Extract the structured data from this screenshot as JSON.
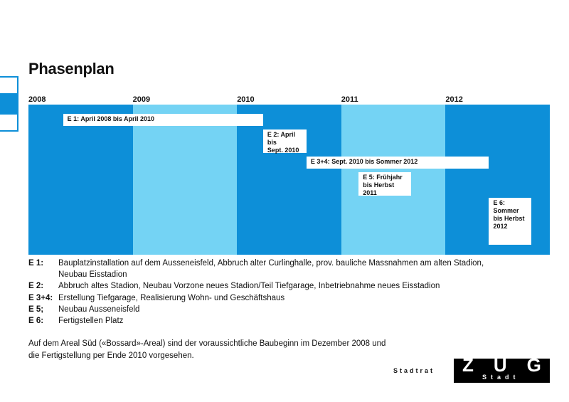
{
  "title": "Phasenplan",
  "chart_data": {
    "type": "gantt",
    "title": "Phasenplan",
    "x_range": [
      "2008-01",
      "2013-01"
    ],
    "years": [
      "2008",
      "2009",
      "2010",
      "2011",
      "2012"
    ],
    "colors": {
      "dark": "#0d8fd8",
      "light": "#74d3f4",
      "bar": "#ffffff"
    },
    "phases": [
      {
        "label": "E 1: April 2008 bis April 2010",
        "start": "2008-04",
        "end": "2010-04"
      },
      {
        "label": "E 2: April bis\nSept. 2010",
        "start": "2010-04",
        "end": "2010-09"
      },
      {
        "label": "E 3+4: Sept. 2010 bis Sommer 2012",
        "start": "2010-09",
        "end": "2012-06"
      },
      {
        "label": "E 5: Frühjahr\nbis Herbst 2011",
        "start": "2011-03",
        "end": "2011-09"
      },
      {
        "label": "E 6:\nSommer\nbis Herbst\n2012",
        "start": "2012-06",
        "end": "2012-09"
      }
    ]
  },
  "legend": [
    {
      "code": "E 1:",
      "text": "Bauplatzinstallation auf dem Ausseneisfeld, Abbruch alter Curlinghalle, prov. bauliche Massnahmen am alten Stadion,\nNeubau Eisstadion"
    },
    {
      "code": "E 2:",
      "text": "Abbruch altes Stadion, Neubau Vorzone neues Stadion/Teil Tiefgarage, Inbetriebnahme neues Eisstadion"
    },
    {
      "code": "E 3+4:",
      "text": "Erstellung Tiefgarage, Realisierung Wohn- und Geschäftshaus"
    },
    {
      "code": "E 5;",
      "text": "Neubau Ausseneisfeld"
    },
    {
      "code": "E 6:",
      "text": "Fertigstellen Platz"
    }
  ],
  "note": "Auf dem Areal Süd («Bossard»-Areal) sind der voraussichtliche Baubeginn im Dezember 2008 und\ndie Fertigstellung per Ende 2010 vorgesehen.",
  "footer": {
    "stadtrat": "Stadtrat",
    "logo_big": "ZUG",
    "logo_small": "Stadt"
  }
}
